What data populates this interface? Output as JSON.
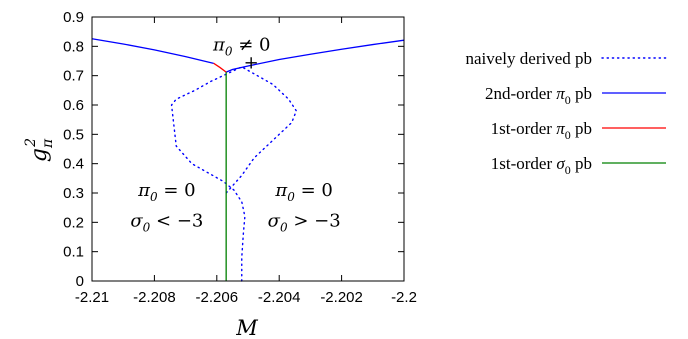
{
  "chart_data": {
    "type": "line",
    "xlabel": "M",
    "ylabel": "g²π",
    "xlim": [
      -2.21,
      -2.2
    ],
    "ylim": [
      0,
      0.9
    ],
    "x_ticks": [
      "-2.21",
      "-2.208",
      "-2.206",
      "-2.204",
      "-2.202",
      "-2.2"
    ],
    "y_ticks": [
      "0",
      "0.1",
      "0.2",
      "0.3",
      "0.4",
      "0.5",
      "0.6",
      "0.7",
      "0.8",
      "0.9"
    ],
    "grid": false,
    "legend_position": "right",
    "annotations": [
      {
        "text": "π0 ≠ 0",
        "x": -2.2052,
        "y": 0.785
      },
      {
        "text": "π0 = 0",
        "x": -2.2076,
        "y": 0.29
      },
      {
        "text": "σ0 < −3",
        "x": -2.2076,
        "y": 0.185
      },
      {
        "text": "π0 = 0",
        "x": -2.2032,
        "y": 0.29
      },
      {
        "text": "σ0 > −3",
        "x": -2.2032,
        "y": 0.185
      },
      {
        "text": "+",
        "x": -2.2049,
        "y": 0.725
      }
    ],
    "series": [
      {
        "name": "naively derived pb",
        "color": "#0000ff",
        "style": "dotted",
        "x": [
          -2.2052,
          -2.2052,
          -2.20515,
          -2.2051,
          -2.2052,
          -2.20545,
          -2.2058,
          -2.2063,
          -2.2068,
          -2.2073,
          -2.20745,
          -2.2073,
          -2.2067,
          -2.2062,
          -2.2058,
          -2.2055,
          -2.2052,
          -2.2047,
          -2.2042,
          -2.2037,
          -2.20345,
          -2.2036,
          -2.2042,
          -2.2048,
          -2.2052,
          -2.20545,
          -2.2057
        ],
        "y": [
          0.0,
          0.08,
          0.16,
          0.22,
          0.27,
          0.31,
          0.34,
          0.37,
          0.4,
          0.46,
          0.6,
          0.62,
          0.65,
          0.68,
          0.7,
          0.715,
          0.73,
          0.7,
          0.67,
          0.62,
          0.58,
          0.54,
          0.48,
          0.42,
          0.36,
          0.33,
          0.3
        ]
      },
      {
        "name": "2nd-order π0 pb",
        "color": "#0000ff",
        "style": "solid",
        "segments": [
          {
            "x": [
              -2.21,
              -2.209,
              -2.208,
              -2.207,
              -2.2065,
              -2.2061
            ],
            "y": [
              0.826,
              0.808,
              0.788,
              0.765,
              0.752,
              0.742
            ]
          },
          {
            "x": [
              -2.2057,
              -2.2055,
              -2.205,
              -2.204,
              -2.203,
              -2.202,
              -2.201,
              -2.2
            ],
            "y": [
              0.712,
              0.721,
              0.733,
              0.755,
              0.773,
              0.79,
              0.806,
              0.821
            ]
          }
        ]
      },
      {
        "name": "1st-order π0 pb",
        "color": "#ff0000",
        "style": "solid",
        "x": [
          -2.2061,
          -2.2059,
          -2.2057
        ],
        "y": [
          0.742,
          0.728,
          0.712
        ]
      },
      {
        "name": "1st-order σ0 pb",
        "color": "#008000",
        "style": "solid",
        "x": [
          -2.2057,
          -2.2057
        ],
        "y": [
          0.712,
          0.0
        ]
      }
    ]
  }
}
